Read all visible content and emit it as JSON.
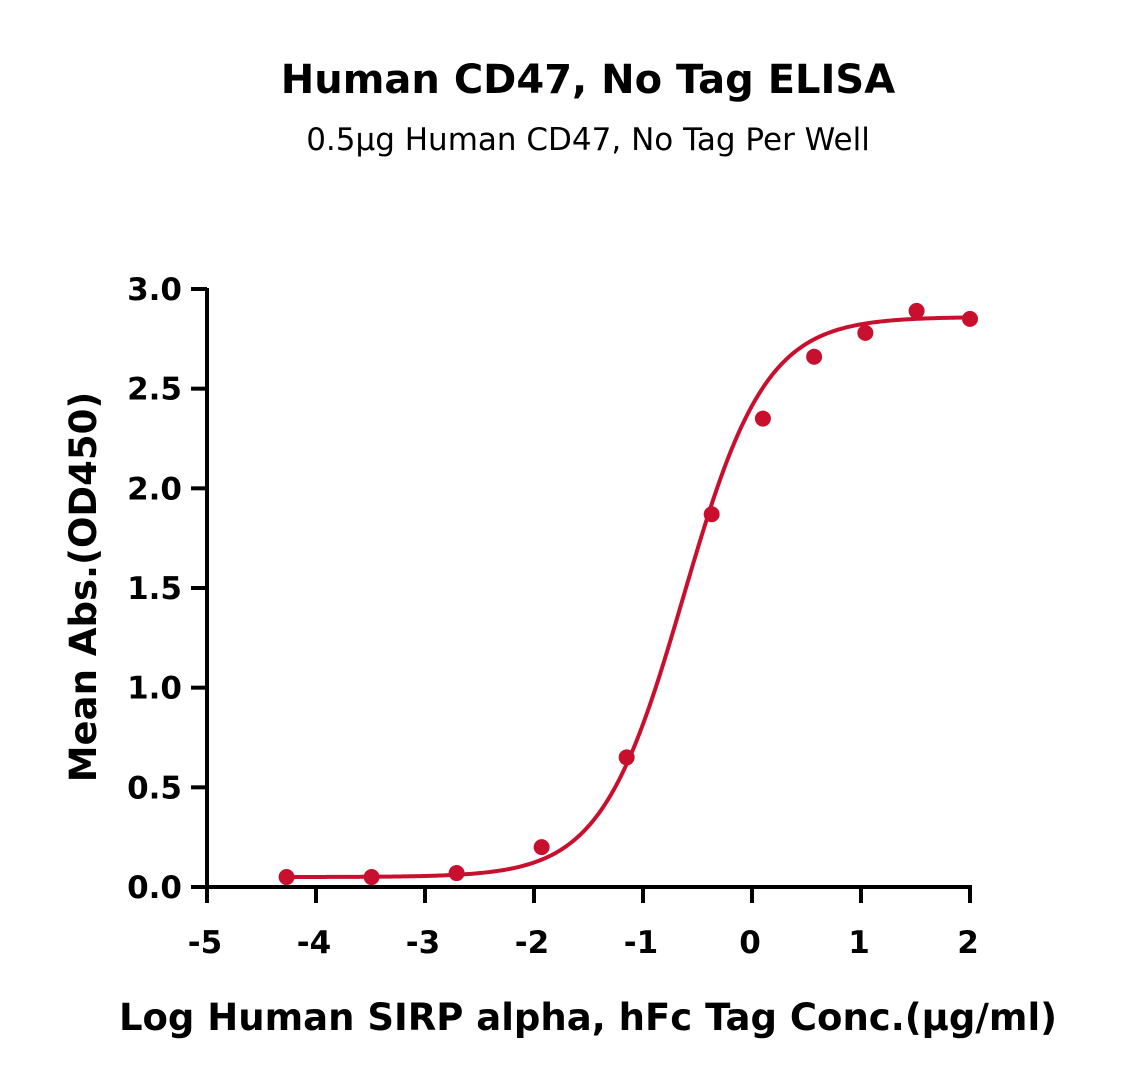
{
  "chart_data": {
    "type": "scatter",
    "title": "Human CD47, No Tag ELISA",
    "subtitle": "0.5µg Human CD47, No Tag Per Well",
    "xlabel": "Log Human SIRP alpha, hFc Tag Conc.(µg/ml)",
    "ylabel": "Mean Abs.(OD450)",
    "xlim": [
      -5,
      2
    ],
    "ylim": [
      0,
      3
    ],
    "x_ticks": [
      "-5",
      "-4",
      "-3",
      "-2",
      "-1",
      "0",
      "1",
      "2"
    ],
    "y_ticks": [
      "0.0",
      "0.5",
      "1.0",
      "1.5",
      "2.0",
      "2.5",
      "3.0"
    ],
    "grid": false,
    "color": "#c8102e",
    "series": [
      {
        "x": [
          -4.27,
          -3.49,
          -2.71,
          -1.93,
          -1.15,
          -0.37,
          0.1,
          0.57,
          1.04,
          1.51,
          2.0
        ],
        "y": [
          0.05,
          0.05,
          0.07,
          0.2,
          0.65,
          1.87,
          2.35,
          2.66,
          2.78,
          2.89,
          2.85
        ],
        "fit": {
          "model": "4PL",
          "bottom": 0.05,
          "top": 2.86,
          "logEC50": -0.63,
          "hill": 1.15
        }
      }
    ]
  }
}
